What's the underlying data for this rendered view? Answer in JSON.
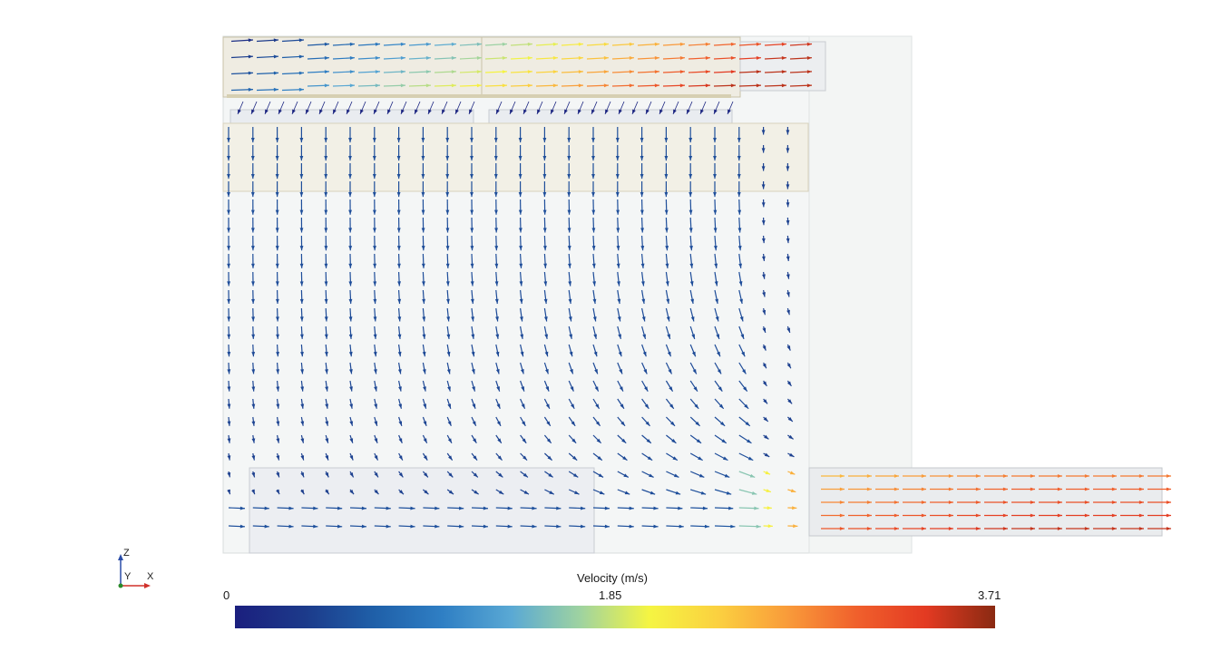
{
  "legend": {
    "title": "Velocity (m/s)",
    "min_label": "0",
    "mid_label": "1.85",
    "max_label": "3.71",
    "colormap": [
      "#1b1f7e",
      "#1c3a8a",
      "#1f5fa8",
      "#2f7fc4",
      "#5aa9d4",
      "#9fd3a0",
      "#f5f542",
      "#fbd040",
      "#f99b3a",
      "#f0602c",
      "#e33a22",
      "#8a2a12"
    ]
  },
  "triad": {
    "z": "Z",
    "y": "Y",
    "x": "X",
    "z_color": "#2a4ca8",
    "x_color": "#d0302a",
    "y_color": "#2a8a2a"
  },
  "vector_field": {
    "max_velocity": 3.71,
    "units": "m/s"
  }
}
